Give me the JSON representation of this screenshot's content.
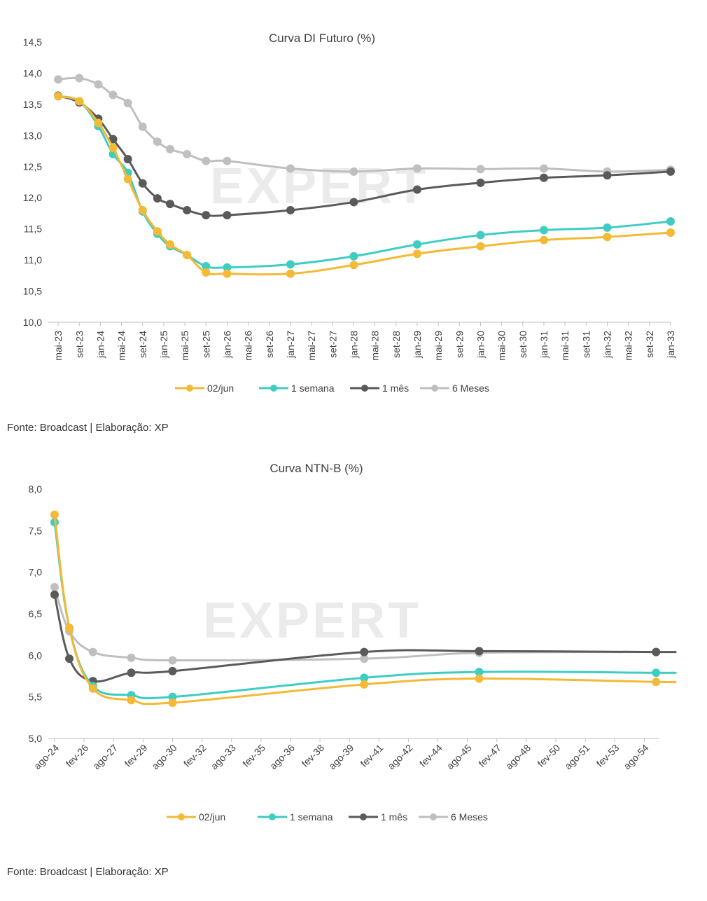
{
  "charts": [
    {
      "type": "line",
      "title": "Curva DI Futuro (%)",
      "xlabel": "",
      "ylabel": "",
      "ylim": [
        10.0,
        14.5
      ],
      "yticks": [
        "14,5",
        "14,0",
        "13,5",
        "13,0",
        "12,5",
        "12,0",
        "11,5",
        "11,0",
        "10,5",
        "10,0"
      ],
      "ytick_values": [
        14.5,
        14.0,
        13.5,
        13.0,
        12.5,
        12.0,
        11.5,
        11.0,
        10.5,
        10.0
      ],
      "categories": [
        "mai-23",
        "set-23",
        "jan-24",
        "mai-24",
        "set-24",
        "jan-25",
        "mai-25",
        "set-25",
        "jan-26",
        "mai-26",
        "set-26",
        "jan-27",
        "mai-27",
        "set-27",
        "jan-28",
        "mai-28",
        "set-28",
        "jan-29",
        "mai-29",
        "set-29",
        "jan-30",
        "mai-30",
        "set-30",
        "jan-31",
        "mai-31",
        "set-31",
        "jan-32",
        "mai-32",
        "set-32",
        "jan-33"
      ],
      "series": [
        {
          "name": "02/jun",
          "color": "#F4B935",
          "x": [
            0,
            1,
            1.9,
            2.6,
            3.3,
            4.0,
            4.7,
            5.3,
            6.1,
            7.0,
            8.0,
            11.0,
            14.0,
            17.0,
            20.0,
            23.0,
            26.0,
            29.0
          ],
          "values": [
            13.63,
            13.55,
            13.2,
            12.8,
            12.3,
            11.8,
            11.46,
            11.25,
            11.08,
            10.8,
            10.78,
            10.78,
            10.92,
            11.1,
            11.22,
            11.32,
            11.37,
            11.44
          ]
        },
        {
          "name": "1 semana",
          "color": "#3FCDC2",
          "x": [
            0,
            1,
            1.9,
            2.6,
            3.3,
            4.0,
            4.7,
            5.3,
            6.1,
            7.0,
            8.0,
            11.0,
            14.0,
            17.0,
            20.0,
            23.0,
            26.0,
            29.0
          ],
          "values": [
            13.63,
            13.55,
            13.15,
            12.7,
            12.4,
            11.78,
            11.42,
            11.22,
            11.08,
            10.9,
            10.88,
            10.93,
            11.06,
            11.25,
            11.4,
            11.48,
            11.52,
            11.62
          ]
        },
        {
          "name": "1 mês",
          "color": "#5A5A5A",
          "x": [
            0,
            1,
            1.9,
            2.6,
            3.3,
            4.0,
            4.7,
            5.3,
            6.1,
            7.0,
            8.0,
            11.0,
            14.0,
            17.0,
            20.0,
            23.0,
            26.0,
            29.0
          ],
          "values": [
            13.64,
            13.53,
            13.27,
            12.94,
            12.62,
            12.23,
            11.99,
            11.9,
            11.8,
            11.72,
            11.72,
            11.8,
            11.93,
            12.13,
            12.24,
            12.32,
            12.36,
            12.42
          ]
        },
        {
          "name": "6 Meses",
          "color": "#BFBFBF",
          "x": [
            0,
            1,
            1.9,
            2.6,
            3.3,
            4.0,
            4.7,
            5.3,
            6.1,
            7.0,
            8.0,
            11.0,
            14.0,
            17.0,
            20.0,
            23.0,
            26.0,
            29.0
          ],
          "values": [
            13.9,
            13.92,
            13.82,
            13.65,
            13.52,
            13.14,
            12.9,
            12.78,
            12.7,
            12.59,
            12.59,
            12.47,
            12.42,
            12.47,
            12.46,
            12.47,
            12.42,
            12.45
          ]
        }
      ],
      "legend": "bottom"
    },
    {
      "type": "line",
      "title": "Curva NTN-B (%)",
      "xlabel": "",
      "ylabel": "",
      "ylim": [
        5.0,
        8.0
      ],
      "yticks": [
        "8,0",
        "7,5",
        "7,0",
        "6,5",
        "6,0",
        "5,5",
        "5,0"
      ],
      "ytick_values": [
        8.0,
        7.5,
        7.0,
        6.5,
        6.0,
        5.5,
        5.0
      ],
      "categories": [
        "ago-24",
        "fev-26",
        "ago-27",
        "fev-29",
        "ago-30",
        "fev-32",
        "ago-33",
        "fev-35",
        "ago-36",
        "fev-38",
        "ago-39",
        "fev-41",
        "ago-42",
        "fev-44",
        "ago-45",
        "fev-47",
        "ago-48",
        "fev-50",
        "ago-51",
        "fev-53",
        "ago-54"
      ],
      "series": [
        {
          "name": "02/jun",
          "color": "#F4B935",
          "x": [
            0,
            0.5,
            1.3,
            2.6,
            4.0,
            10.5,
            14.4,
            20.4,
            20.9
          ],
          "values": [
            7.69,
            6.33,
            5.6,
            5.46,
            5.43,
            5.65,
            5.72,
            5.68,
            5.68
          ]
        },
        {
          "name": "1 semana",
          "color": "#3FCDC2",
          "x": [
            0,
            0.5,
            1.3,
            2.6,
            4.0,
            10.5,
            14.4,
            20.4,
            20.9
          ],
          "values": [
            7.6,
            6.33,
            5.63,
            5.52,
            5.5,
            5.73,
            5.8,
            5.79,
            5.79
          ]
        },
        {
          "name": "1 mês",
          "color": "#5A5A5A",
          "x": [
            0,
            0.5,
            1.3,
            2.6,
            4.0,
            10.5,
            14.4,
            20.4,
            20.9
          ],
          "values": [
            6.73,
            5.96,
            5.69,
            5.79,
            5.81,
            6.04,
            6.05,
            6.04,
            6.04
          ]
        },
        {
          "name": "6 Meses",
          "color": "#BFBFBF",
          "x": [
            0,
            0.5,
            1.3,
            2.6,
            4.0,
            10.5,
            14.4,
            20.4,
            20.9
          ],
          "values": [
            6.82,
            6.29,
            6.04,
            5.97,
            5.94,
            5.96,
            6.03,
            6.04,
            6.04
          ]
        }
      ],
      "legend": "bottom"
    }
  ],
  "sources": [
    "Fonte: Broadcast | Elaboração: XP",
    "Fonte: Broadcast | Elaboração: XP"
  ],
  "watermark": "EXPERT"
}
